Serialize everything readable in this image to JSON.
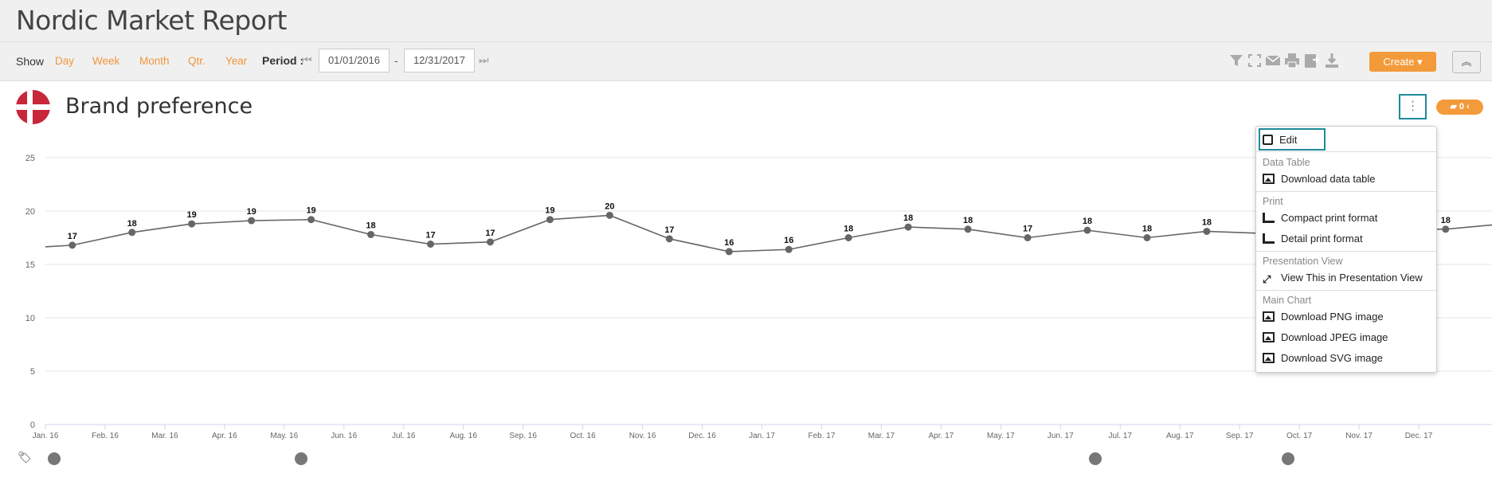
{
  "report": {
    "title": "Nordic Market Report"
  },
  "toolbar": {
    "show_label": "Show",
    "periods": [
      "Day",
      "Week",
      "Month",
      "Qtr.",
      "Year"
    ],
    "period_label": "Period :",
    "date_from": "01/01/2016",
    "date_separator": "-",
    "date_to": "12/31/2017",
    "create_label": "Create",
    "icons": [
      "filter-icon",
      "fullscreen-icon",
      "email-icon",
      "print-icon",
      "export-icon",
      "download-icon"
    ]
  },
  "chart_card": {
    "title": "Brand preference",
    "comment_count": "0",
    "flag": "denmark-flag"
  },
  "menu": {
    "edit": "Edit",
    "sections": [
      {
        "title": "Data Table",
        "items": [
          "Download data table"
        ]
      },
      {
        "title": "Print",
        "items": [
          "Compact print format",
          "Detail print format"
        ]
      },
      {
        "title": "Presentation View",
        "items": [
          "View This in Presentation View"
        ]
      },
      {
        "title": "Main Chart",
        "items": [
          "Download PNG image",
          "Download JPEG image",
          "Download SVG image"
        ]
      }
    ]
  },
  "chart_data": {
    "type": "line",
    "title": "",
    "xlabel": "",
    "ylabel": "",
    "ylim": [
      0,
      25
    ],
    "yticks": [
      0,
      5,
      10,
      15,
      20,
      25
    ],
    "grid": true,
    "categories": [
      "Jan. 16",
      "Feb. 16",
      "Mar. 16",
      "Apr. 16",
      "May. 16",
      "Jun. 16",
      "Jul. 16",
      "Aug. 16",
      "Sep. 16",
      "Oct. 16",
      "Nov. 16",
      "Dec. 16",
      "Jan. 17",
      "Feb. 17",
      "Mar. 17",
      "Apr. 17",
      "May. 17",
      "Jun. 17",
      "Jul. 17",
      "Aug. 17",
      "Sep. 17",
      "Oct. 17",
      "Nov. 17",
      "Dec. 17"
    ],
    "series": [
      {
        "values": [
          16.8,
          18.0,
          18.8,
          19.1,
          19.2,
          17.8,
          16.9,
          17.1,
          19.2,
          19.6,
          17.4,
          16.2,
          16.4,
          17.5,
          18.5,
          18.3,
          17.5,
          18.2,
          17.5,
          18.1,
          17.9,
          17.9,
          18.3,
          18.3
        ],
        "labels": [
          "17",
          "18",
          "19",
          "19",
          "19",
          "18",
          "17",
          "17",
          "19",
          "20",
          "17",
          "16",
          "16",
          "18",
          "18",
          "18",
          "17",
          "18",
          "18",
          "18",
          "",
          "",
          "",
          "18"
        ],
        "color": "#666666"
      }
    ]
  },
  "colors": {
    "accent": "#f39a3a",
    "highlight": "#1f8a9a",
    "flag_red": "#c8273b"
  }
}
